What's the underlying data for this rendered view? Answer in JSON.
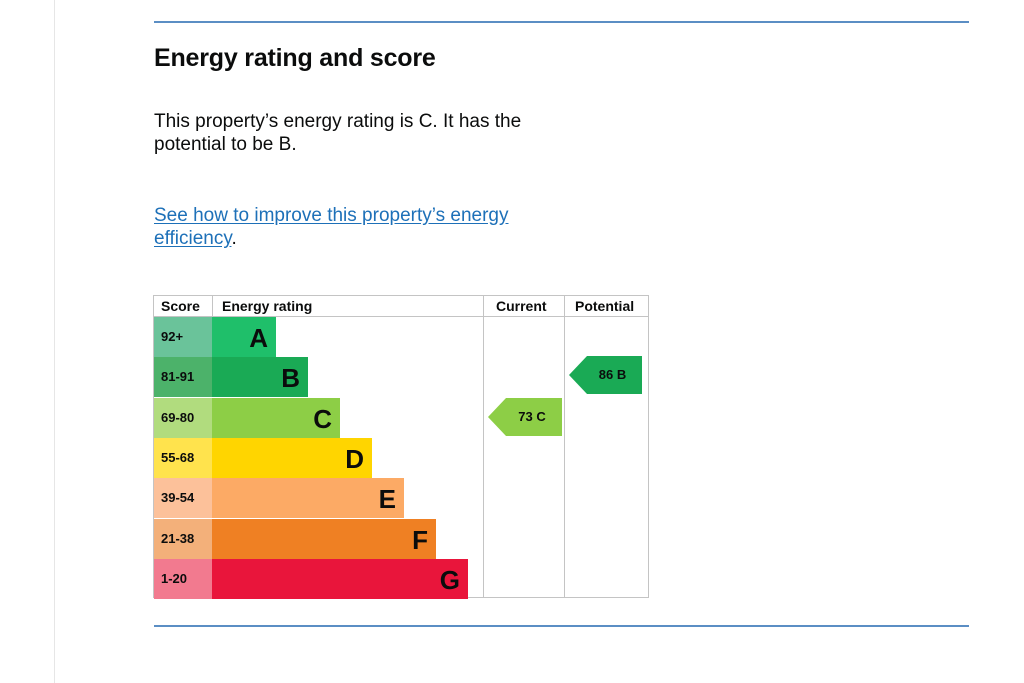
{
  "heading": "Energy rating and score",
  "summary": "This property’s energy rating is C. It has the potential to be B.",
  "improve_link": "See how to improve this property’s energy efficiency",
  "improve_suffix": ".",
  "table": {
    "headers": {
      "score": "Score",
      "rating": "Energy rating",
      "current": "Current",
      "potential": "Potential"
    },
    "bands": [
      {
        "range": "92+",
        "letter": "A",
        "score_bg": "#6ac39a",
        "bar_color": "#1fbf6a"
      },
      {
        "range": "81-91",
        "letter": "B",
        "score_bg": "#4cb26a",
        "bar_color": "#1aaa55"
      },
      {
        "range": "69-80",
        "letter": "C",
        "score_bg": "#b1dc7e",
        "bar_color": "#8dce46"
      },
      {
        "range": "55-68",
        "letter": "D",
        "score_bg": "#ffe34d",
        "bar_color": "#ffd500"
      },
      {
        "range": "39-54",
        "letter": "E",
        "score_bg": "#fcc19a",
        "bar_color": "#fcaa65"
      },
      {
        "range": "21-38",
        "letter": "F",
        "score_bg": "#f3b07a",
        "bar_color": "#ef8023"
      },
      {
        "range": "1-20",
        "letter": "G",
        "score_bg": "#f27a8f",
        "bar_color": "#e9153b"
      }
    ],
    "current": {
      "label": "73 C",
      "color": "#8dce46"
    },
    "potential": {
      "label": "86 B",
      "color": "#1aaa55"
    }
  }
}
